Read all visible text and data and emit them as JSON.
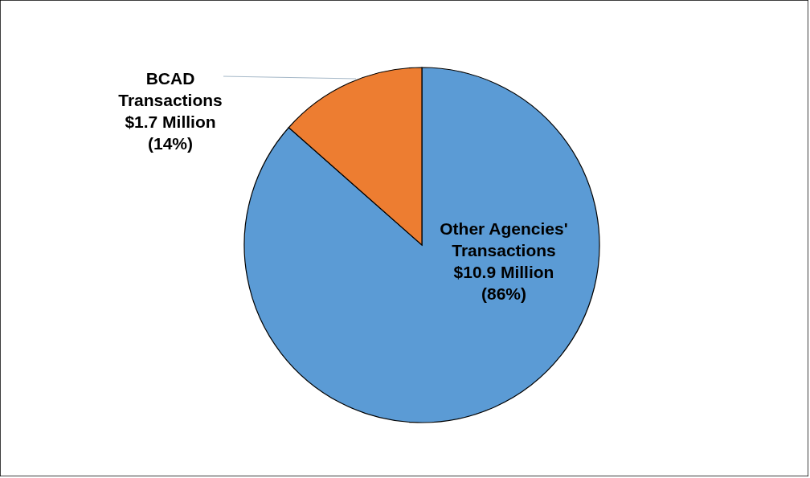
{
  "chart_data": {
    "type": "pie",
    "categories": [
      "Other Agencies' Transactions",
      "BCAD Transactions"
    ],
    "values": [
      10.9,
      1.7
    ],
    "colors": [
      "#5b9bd5",
      "#ed7d31"
    ],
    "value_labels": [
      "$10.9 Million (86%)",
      "$1.7 Million (14%)"
    ]
  }
}
